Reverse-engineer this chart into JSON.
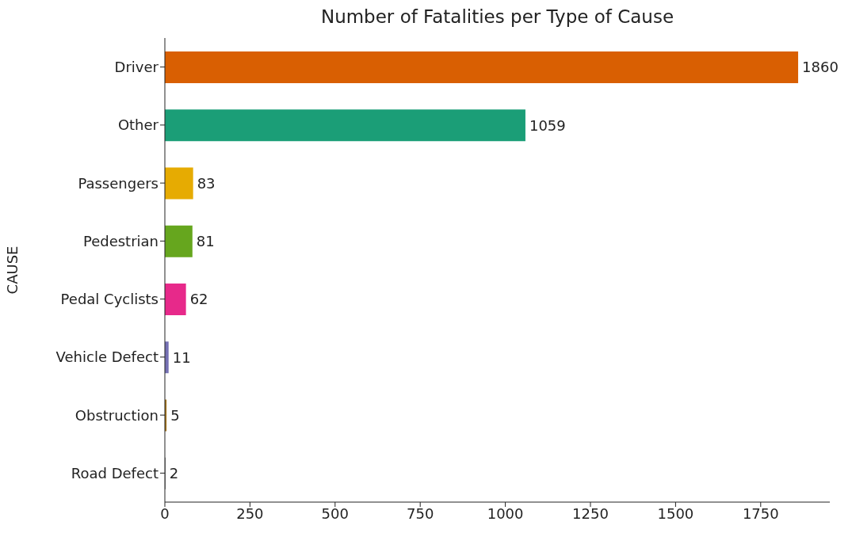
{
  "chart_data": {
    "type": "bar",
    "orientation": "horizontal",
    "title": "Number of Fatalities per Type of Cause",
    "ylabel": "CAUSE",
    "categories": [
      "Driver",
      "Other",
      "Passengers",
      "Pedestrian",
      "Pedal Cyclists",
      "Vehicle Defect",
      "Obstruction",
      "Road Defect"
    ],
    "values": [
      1860,
      1059,
      83,
      81,
      62,
      11,
      5,
      2
    ],
    "colors": [
      "#d95f02",
      "#1b9e77",
      "#e6ab02",
      "#66a61e",
      "#e7298a",
      "#7570b3",
      "#a6761d",
      "#666666"
    ],
    "xlim": [
      0,
      1953
    ],
    "xticks": [
      0,
      250,
      500,
      750,
      1000,
      1250,
      1500,
      1750
    ],
    "data_labels": true
  }
}
